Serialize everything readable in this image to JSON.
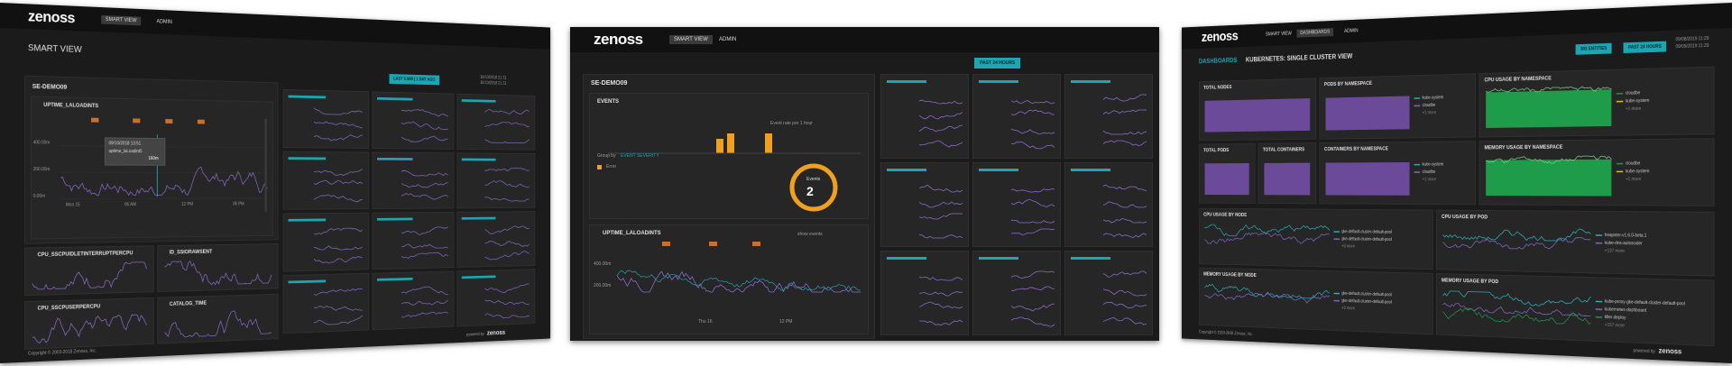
{
  "left": {
    "logo": "zenoss",
    "nav": [
      "SMART VIEW",
      "ADMIN"
    ],
    "title": "SMART VIEW",
    "button": "LAST 5 MIN | 1 DAY AGO",
    "entity": "SE-DEMO09",
    "dates": [
      "10/10/2018 21:11",
      "10/10/2018 21:11"
    ],
    "widgets": [
      "UPTIME_LALOADINTS",
      "CPU_SSCPUIDLETINTERRUPTPERCPU",
      "ID_SSIORAWSENT",
      "CPU_SSCPUSERPERCPU",
      "CATALOG_TIME"
    ],
    "tooltip": {
      "date": "09/10/2018 13:51",
      "label": "uptime_lal.oadint5",
      "value": "160m"
    },
    "yaxis": [
      "400.00m",
      "200.00m",
      "0.00m"
    ],
    "xaxis": [
      "Mon 15",
      "06 AM",
      "12 PM",
      "06 PM"
    ],
    "footer": "Copyright © 2003-2018 Zenoss, Inc.",
    "powered": "powered by"
  },
  "middle": {
    "logo": "zenoss",
    "nav": [
      "SMART VIEW",
      "ADMIN"
    ],
    "button": "PAST 24 HOURS",
    "entity": "SE-DEMO09",
    "events": "EVENTS",
    "event_note": "Event rate per 1 hour",
    "group_by": "Group by",
    "severity": "EVENT SEVERITY",
    "error": "Error",
    "donut_label": "Events",
    "donut_value": 2,
    "widget": "UPTIME_LALOADINTS",
    "show_events": "show events",
    "yaxis": [
      "400.00m",
      "200.00m"
    ],
    "xaxis": [
      "Thu 16",
      "12 PM"
    ]
  },
  "right": {
    "logo": "zenoss",
    "nav": [
      "SMART VIEW",
      "DASHBOARDS",
      "ADMIN"
    ],
    "breadcrumb": "DASHBOARDS",
    "title": "KUBERNETES: SINGLE CLUSTER VIEW",
    "entities": "303 ENTITIES",
    "button": "PAST 24 HOURS",
    "dates": [
      "09/08/2019 11:29",
      "09/09/2019 11:29"
    ],
    "tiles": [
      {
        "title": "TOTAL NODES"
      },
      {
        "title": "PODS BY NAMESPACE",
        "legend": [
          "kube-system",
          "cloudbe",
          "+1 more"
        ]
      },
      {
        "title": "CPU USAGE BY NAMESPACE",
        "legend": [
          "cloudbe",
          "kube-system",
          "+1 more"
        ]
      },
      {
        "title": "TOTAL PODS"
      },
      {
        "title": "TOTAL CONTAINERS"
      },
      {
        "title": "CONTAINERS BY NAMESPACE",
        "legend": [
          "kube-system",
          "cloudbe",
          "+1 more"
        ]
      },
      {
        "title": "MEMORY USAGE BY NAMESPACE",
        "legend": [
          "cloudbe",
          "kube-system",
          "+1 more"
        ]
      },
      {
        "title": "CPU USAGE BY NODE",
        "legend": [
          "gke-default-cluster-default-pool",
          "gke-default-cluster-default-pool",
          "+3 more"
        ]
      },
      {
        "title": "CPU USAGE BY POD",
        "legend": [
          "heapster-v1.6.0-beta.1",
          "kube-dns-autoscaler",
          "+137 more"
        ]
      },
      {
        "title": "MEMORY USAGE BY NODE",
        "legend": [
          "gke-default-cluster-default-pool",
          "gke-default-cluster-default-pool",
          "+3 more"
        ]
      },
      {
        "title": "MEMORY USAGE BY POD",
        "legend": [
          "kube-proxy-gke-default-cluster-default-pool",
          "kubernetes-dashboard",
          "tiller-deploy",
          "+157 more"
        ]
      }
    ],
    "footer": "Copyright © 2003-2019 Zenoss, Inc.",
    "powered": "powered by"
  }
}
